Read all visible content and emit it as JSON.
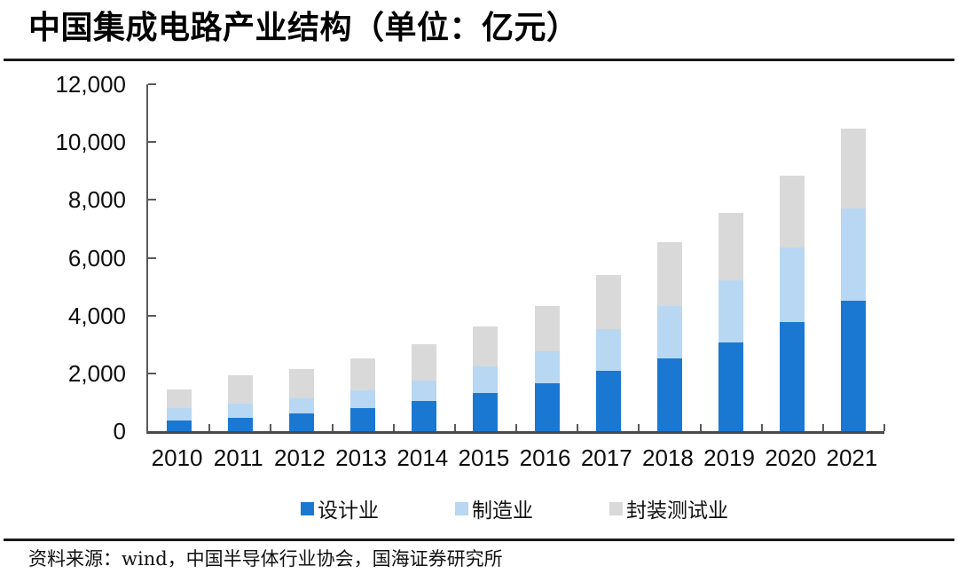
{
  "page": {
    "title": "中国集成电路产业结构（单位：亿元）",
    "source_note": "资料来源：wind，中国半导体行业协会，国海证券研究所"
  },
  "chart_data": {
    "type": "bar",
    "stacked": true,
    "title": "中国集成电路产业结构（单位：亿元）",
    "unit": "亿元",
    "categories": [
      "2010",
      "2011",
      "2012",
      "2013",
      "2014",
      "2015",
      "2016",
      "2017",
      "2018",
      "2019",
      "2020",
      "2021"
    ],
    "series": [
      {
        "name": "设计业",
        "slug": "design",
        "color": "#1A78D2",
        "values": [
          363.9,
          473.7,
          621.7,
          808.8,
          1047.4,
          1325.0,
          1644.3,
          2073.5,
          2519.3,
          3063.5,
          3778.4,
          4519.0
        ]
      },
      {
        "name": "制造业",
        "slug": "manufacturing",
        "color": "#B8D7F3",
        "values": [
          447.1,
          482.7,
          503.2,
          600.9,
          712.1,
          900.8,
          1126.9,
          1448.1,
          1818.2,
          2149.1,
          2560.1,
          3176.3
        ]
      },
      {
        "name": "封装测试业",
        "slug": "packaging-testing",
        "color": "#D9D9D9",
        "values": [
          629.2,
          976.8,
          1035.7,
          1098.8,
          1255.9,
          1384.0,
          1564.3,
          1889.7,
          2193.9,
          2349.7,
          2509.5,
          2763.0
        ]
      }
    ],
    "ylim": [
      0,
      12000
    ],
    "y_ticks": [
      {
        "value": 0,
        "label": "0"
      },
      {
        "value": 2000,
        "label": "2,000"
      },
      {
        "value": 4000,
        "label": "4,000"
      },
      {
        "value": 6000,
        "label": "6,000"
      },
      {
        "value": 8000,
        "label": "8,000"
      },
      {
        "value": 10000,
        "label": "10,000"
      },
      {
        "value": 12000,
        "label": "12,000"
      }
    ],
    "grid": false,
    "legend_position": "bottom"
  }
}
